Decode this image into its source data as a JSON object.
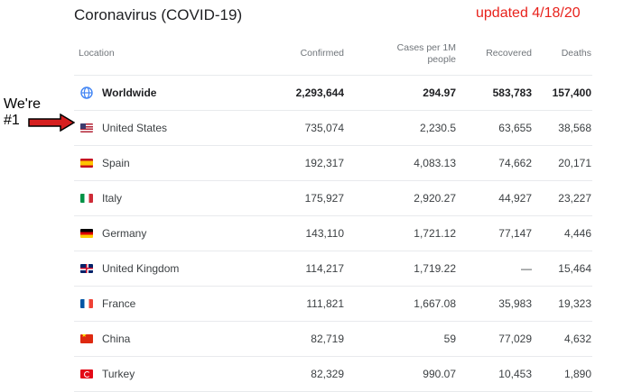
{
  "header": {
    "title": "Coronavirus (COVID-19)",
    "updated": "updated 4/18/20"
  },
  "annotation": {
    "line1": "We're",
    "line2": "#1"
  },
  "columns": {
    "location": "Location",
    "confirmed": "Confirmed",
    "cases_per_1m_line1": "Cases per 1M",
    "cases_per_1m_line2": "people",
    "recovered": "Recovered",
    "deaths": "Deaths"
  },
  "rows": [
    {
      "location": "Worldwide",
      "icon": "globe-icon",
      "confirmed": "2,293,644",
      "cases_per_1m": "294.97",
      "recovered": "583,783",
      "deaths": "157,400"
    },
    {
      "location": "United States",
      "icon": "us-flag-icon",
      "confirmed": "735,074",
      "cases_per_1m": "2,230.5",
      "recovered": "63,655",
      "deaths": "38,568"
    },
    {
      "location": "Spain",
      "icon": "spain-flag-icon",
      "confirmed": "192,317",
      "cases_per_1m": "4,083.13",
      "recovered": "74,662",
      "deaths": "20,171"
    },
    {
      "location": "Italy",
      "icon": "italy-flag-icon",
      "confirmed": "175,927",
      "cases_per_1m": "2,920.27",
      "recovered": "44,927",
      "deaths": "23,227"
    },
    {
      "location": "Germany",
      "icon": "germany-flag-icon",
      "confirmed": "143,110",
      "cases_per_1m": "1,721.12",
      "recovered": "77,147",
      "deaths": "4,446"
    },
    {
      "location": "United Kingdom",
      "icon": "uk-flag-icon",
      "confirmed": "114,217",
      "cases_per_1m": "1,719.22",
      "recovered": "—",
      "deaths": "15,464"
    },
    {
      "location": "France",
      "icon": "france-flag-icon",
      "confirmed": "111,821",
      "cases_per_1m": "1,667.08",
      "recovered": "35,983",
      "deaths": "19,323"
    },
    {
      "location": "China",
      "icon": "china-flag-icon",
      "confirmed": "82,719",
      "cases_per_1m": "59",
      "recovered": "77,029",
      "deaths": "4,632"
    },
    {
      "location": "Turkey",
      "icon": "turkey-flag-icon",
      "confirmed": "82,329",
      "cases_per_1m": "990.07",
      "recovered": "10,453",
      "deaths": "1,890"
    }
  ],
  "colors": {
    "updated_text": "#e8221c",
    "arrow_fill": "#d61f1f",
    "globe_blue": "#4285f4"
  }
}
